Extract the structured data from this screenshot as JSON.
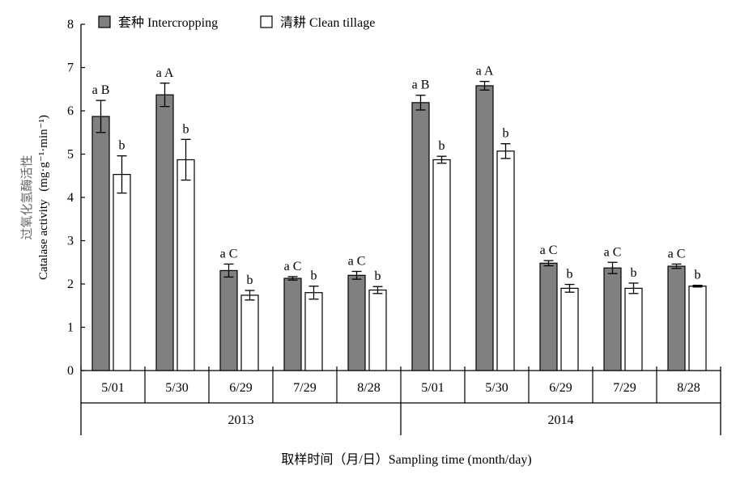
{
  "chart_data": {
    "type": "bar",
    "ylabel_cn": "过氧化氢酶活性",
    "ylabel_en": "Catalase activity",
    "ylabel_unit": "(mg·g⁻¹·min⁻¹)",
    "xlabel": "取样时间（月/日）Sampling time (month/day)",
    "ylim": [
      0,
      8
    ],
    "yticks": [
      "0",
      "1",
      "2",
      "3",
      "4",
      "5",
      "6",
      "7",
      "8"
    ],
    "categories": [
      "5/01",
      "5/30",
      "6/29",
      "7/29",
      "8/28",
      "5/01",
      "5/30",
      "6/29",
      "7/29",
      "8/28"
    ],
    "groups": [
      {
        "label": "2013",
        "count": 5
      },
      {
        "label": "2014",
        "count": 5
      }
    ],
    "series": [
      {
        "name": "套种 Intercropping",
        "color": "#808080",
        "values": [
          5.87,
          6.37,
          2.31,
          2.13,
          2.2,
          6.19,
          6.58,
          2.48,
          2.37,
          2.41
        ],
        "errors": [
          0.37,
          0.27,
          0.15,
          0.04,
          0.09,
          0.17,
          0.1,
          0.06,
          0.13,
          0.05
        ],
        "labels": [
          "a B",
          "a A",
          "a C",
          "a C",
          "a C",
          "a B",
          "a A",
          "a C",
          "a C",
          "a C"
        ]
      },
      {
        "name": "清耕 Clean tillage",
        "color": "#ffffff",
        "values": [
          4.53,
          4.87,
          1.74,
          1.8,
          1.86,
          4.87,
          5.07,
          1.9,
          1.9,
          1.95
        ],
        "errors": [
          0.43,
          0.47,
          0.11,
          0.15,
          0.08,
          0.08,
          0.17,
          0.09,
          0.12,
          0.02
        ],
        "labels": [
          "b",
          "b",
          "b",
          "b",
          "b",
          "b",
          "b",
          "b",
          "b",
          "b"
        ]
      }
    ],
    "legend_position": "top-left"
  }
}
